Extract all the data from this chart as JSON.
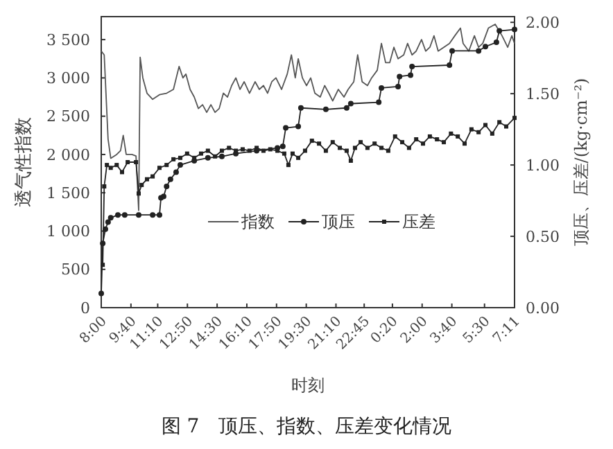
{
  "chart_data": {
    "type": "line",
    "title": "图 7　顶压、指数、压差变化情况",
    "xlabel": "时刻",
    "ylabel": "透气性指数",
    "y2label": "顶压、压差/(kg·cm⁻²)",
    "xlim": [
      "2000-01-01T08:00",
      "2000-01-02T07:11"
    ],
    "xticks": [
      {
        "value": "2000-01-01T08:00",
        "label": "8:00"
      },
      {
        "value": "2000-01-01T09:40",
        "label": "9:40"
      },
      {
        "value": "2000-01-01T11:10",
        "label": "11:10"
      },
      {
        "value": "2000-01-01T12:50",
        "label": "12:50"
      },
      {
        "value": "2000-01-01T14:30",
        "label": "14:30"
      },
      {
        "value": "2000-01-01T16:10",
        "label": "16:10"
      },
      {
        "value": "2000-01-01T17:50",
        "label": "17:50"
      },
      {
        "value": "2000-01-01T19:30",
        "label": "19:30"
      },
      {
        "value": "2000-01-01T21:10",
        "label": "21:10"
      },
      {
        "value": "2000-01-01T22:45",
        "label": "22:45"
      },
      {
        "value": "2000-01-02T00:20",
        "label": "0:20"
      },
      {
        "value": "2000-01-02T02:00",
        "label": "2:00"
      },
      {
        "value": "2000-01-02T03:40",
        "label": "3:40"
      },
      {
        "value": "2000-01-02T05:30",
        "label": "5:30"
      },
      {
        "value": "2000-01-02T07:11",
        "label": "7:11"
      }
    ],
    "ylim": [
      0,
      3800
    ],
    "yticks": [
      0,
      500,
      {
        "value": 1000,
        "label": "1 000"
      },
      {
        "value": 1500,
        "label": "1 500"
      },
      {
        "value": 2000,
        "label": "2 000"
      },
      {
        "value": 2500,
        "label": "2 500"
      },
      {
        "value": 3000,
        "label": "3 000"
      },
      {
        "value": 3500,
        "label": "3 500"
      }
    ],
    "y2lim": [
      0,
      2.04
    ],
    "y2ticks": [
      {
        "value": 0,
        "label": "0.00"
      },
      {
        "value": 0.5,
        "label": "0.50"
      },
      {
        "value": 1,
        "label": "1.00"
      },
      {
        "value": 1.5,
        "label": "1.50"
      },
      {
        "value": 2,
        "label": "2.00"
      }
    ],
    "legend": "center",
    "grid": false,
    "series": [
      {
        "name": "指数",
        "color": "#555555",
        "marker": "none",
        "x": [
          "2000-01-01T08:00",
          "2000-01-01T08:10",
          "2000-01-01T08:23",
          "2000-01-01T08:32",
          "2000-01-01T08:52",
          "2000-01-01T09:05",
          "2000-01-01T09:14",
          "2000-01-01T09:24",
          "2000-01-01T09:43",
          "2000-01-01T09:57",
          "2000-01-01T10:06",
          "2000-01-01T10:11",
          "2000-01-01T10:20",
          "2000-01-01T10:34",
          "2000-01-01T10:53",
          "2000-01-01T11:16",
          "2000-01-01T11:40",
          "2000-01-01T12:03",
          "2000-01-01T12:22",
          "2000-01-01T12:35",
          "2000-01-01T12:45",
          "2000-01-01T12:59",
          "2000-01-01T13:13",
          "2000-01-01T13:27",
          "2000-01-01T13:41",
          "2000-01-01T13:55",
          "2000-01-01T14:09",
          "2000-01-01T14:23",
          "2000-01-01T14:37",
          "2000-01-01T14:51",
          "2000-01-01T15:05",
          "2000-01-01T15:19",
          "2000-01-01T15:33",
          "2000-01-01T15:47",
          "2000-01-01T16:01",
          "2000-01-01T16:19",
          "2000-01-01T16:38",
          "2000-01-01T16:52",
          "2000-01-01T17:06",
          "2000-01-01T17:20",
          "2000-01-01T17:34",
          "2000-01-01T17:48",
          "2000-01-01T18:07",
          "2000-01-01T18:26",
          "2000-01-01T18:40",
          "2000-01-01T18:53",
          "2000-01-01T19:03",
          "2000-01-01T19:17",
          "2000-01-01T19:31",
          "2000-01-01T19:45",
          "2000-01-01T19:59",
          "2000-01-01T20:17",
          "2000-01-01T20:32",
          "2000-01-01T20:46",
          "2000-01-01T20:59",
          "2000-01-01T21:18",
          "2000-01-01T21:37",
          "2000-01-01T21:51",
          "2000-01-01T22:10",
          "2000-01-01T22:23",
          "2000-01-01T22:38",
          "2000-01-01T22:56",
          "2000-01-01T23:10",
          "2000-01-01T23:29",
          "2000-01-01T23:43",
          "2000-01-01T23:57",
          "2000-01-02T00:11",
          "2000-01-02T00:25",
          "2000-01-02T00:39",
          "2000-01-02T00:58",
          "2000-01-02T01:11",
          "2000-01-02T01:26",
          "2000-01-02T01:40",
          "2000-01-02T01:58",
          "2000-01-02T02:12",
          "2000-01-02T02:26",
          "2000-01-02T02:40",
          "2000-01-02T02:54",
          "2000-01-02T03:13",
          "2000-01-02T03:32",
          "2000-01-02T03:50",
          "2000-01-02T04:09",
          "2000-01-02T04:18",
          "2000-01-02T04:37",
          "2000-01-02T04:56",
          "2000-01-02T05:10",
          "2000-01-02T05:24",
          "2000-01-02T05:43",
          "2000-01-02T06:06",
          "2000-01-02T06:29",
          "2000-01-02T06:48",
          "2000-01-02T07:02",
          "2000-01-02T07:11"
        ],
        "values": [
          3350,
          3300,
          2200,
          1950,
          2000,
          2050,
          2250,
          2000,
          2000,
          1980,
          1270,
          3270,
          3000,
          2800,
          2720,
          2780,
          2800,
          2850,
          3150,
          3000,
          3050,
          2850,
          2750,
          2600,
          2650,
          2550,
          2650,
          2550,
          2600,
          2800,
          2750,
          2900,
          3000,
          2850,
          2950,
          2800,
          2950,
          2850,
          2900,
          2800,
          2950,
          3000,
          2850,
          3050,
          3300,
          3000,
          3250,
          3000,
          2900,
          3000,
          2800,
          2750,
          2900,
          2800,
          2700,
          2850,
          2750,
          2850,
          2950,
          3300,
          2950,
          2900,
          3000,
          3100,
          3450,
          3200,
          3200,
          3400,
          3250,
          3300,
          3450,
          3300,
          3350,
          3500,
          3350,
          3400,
          3550,
          3350,
          3400,
          3450,
          3550,
          3650,
          3450,
          3350,
          3550,
          3400,
          3450,
          3650,
          3700,
          3550,
          3400,
          3550,
          3450
        ]
      },
      {
        "name": "顶压",
        "color": "#222222",
        "marker": "circle",
        "axis": "y2",
        "x": [
          "2000-01-01T08:00",
          "2000-01-01T08:05",
          "2000-01-01T08:14",
          "2000-01-01T08:23",
          "2000-01-01T08:32",
          "2000-01-01T08:56",
          "2000-01-01T09:19",
          "2000-01-01T10:06",
          "2000-01-01T10:53",
          "2000-01-01T11:16",
          "2000-01-01T11:21",
          "2000-01-01T11:30",
          "2000-01-01T11:40",
          "2000-01-01T11:53",
          "2000-01-01T12:12",
          "2000-01-01T12:26",
          "2000-01-01T13:13",
          "2000-01-01T13:59",
          "2000-01-01T14:46",
          "2000-01-01T15:33",
          "2000-01-01T16:43",
          "2000-01-01T17:53",
          "2000-01-01T18:11",
          "2000-01-01T18:21",
          "2000-01-01T19:03",
          "2000-01-01T19:12",
          "2000-01-01T20:36",
          "2000-01-01T21:46",
          "2000-01-01T22:00",
          "2000-01-01T23:34",
          "2000-01-01T23:43",
          "2000-01-02T00:39",
          "2000-01-02T00:44",
          "2000-01-02T01:21",
          "2000-01-02T01:26",
          "2000-01-02T03:32",
          "2000-01-02T03:41",
          "2000-01-02T05:10",
          "2000-01-02T05:33",
          "2000-01-02T06:10",
          "2000-01-02T06:20",
          "2000-01-02T07:11"
        ],
        "values": [
          0.1,
          0.45,
          0.55,
          0.6,
          0.63,
          0.65,
          0.65,
          0.65,
          0.65,
          0.65,
          0.77,
          0.78,
          0.85,
          0.9,
          0.95,
          1.0,
          1.03,
          1.05,
          1.06,
          1.08,
          1.1,
          1.12,
          1.13,
          1.26,
          1.27,
          1.4,
          1.39,
          1.4,
          1.43,
          1.44,
          1.54,
          1.55,
          1.62,
          1.63,
          1.69,
          1.7,
          1.8,
          1.8,
          1.83,
          1.86,
          1.94,
          1.95
        ]
      },
      {
        "name": "压差",
        "color": "#222222",
        "marker": "square",
        "axis": "y2",
        "x": [
          "2000-01-01T08:05",
          "2000-01-01T08:10",
          "2000-01-01T08:19",
          "2000-01-01T08:32",
          "2000-01-01T08:52",
          "2000-01-01T09:10",
          "2000-01-01T09:29",
          "2000-01-01T09:57",
          "2000-01-01T10:06",
          "2000-01-01T10:16",
          "2000-01-01T10:34",
          "2000-01-01T10:53",
          "2000-01-01T11:16",
          "2000-01-01T11:40",
          "2000-01-01T12:03",
          "2000-01-01T12:26",
          "2000-01-01T12:49",
          "2000-01-01T13:13",
          "2000-01-01T13:36",
          "2000-01-01T13:59",
          "2000-01-01T14:23",
          "2000-01-01T14:46",
          "2000-01-01T15:10",
          "2000-01-01T15:33",
          "2000-01-01T15:56",
          "2000-01-01T16:19",
          "2000-01-01T16:43",
          "2000-01-01T17:06",
          "2000-01-01T17:29",
          "2000-01-01T17:53",
          "2000-01-01T18:16",
          "2000-01-01T18:30",
          "2000-01-01T18:44",
          "2000-01-01T19:03",
          "2000-01-01T19:26",
          "2000-01-01T19:49",
          "2000-01-01T20:13",
          "2000-01-01T20:36",
          "2000-01-01T20:59",
          "2000-01-01T21:23",
          "2000-01-01T21:46",
          "2000-01-01T22:00",
          "2000-01-01T22:14",
          "2000-01-01T22:33",
          "2000-01-01T22:56",
          "2000-01-01T23:20",
          "2000-01-01T23:43",
          "2000-01-02T00:06",
          "2000-01-02T00:29",
          "2000-01-02T00:53",
          "2000-01-02T01:16",
          "2000-01-02T01:40",
          "2000-01-02T02:03",
          "2000-01-02T02:26",
          "2000-01-02T02:50",
          "2000-01-02T03:13",
          "2000-01-02T03:37",
          "2000-01-02T04:00",
          "2000-01-02T04:23",
          "2000-01-02T04:46",
          "2000-01-02T05:10",
          "2000-01-02T05:33",
          "2000-01-02T05:56",
          "2000-01-02T06:20",
          "2000-01-02T06:43",
          "2000-01-02T07:11"
        ],
        "values": [
          0.3,
          0.85,
          1.0,
          0.98,
          1.0,
          0.95,
          1.02,
          1.02,
          0.8,
          0.86,
          0.9,
          0.92,
          0.98,
          1.0,
          1.04,
          1.05,
          1.08,
          1.05,
          1.08,
          1.1,
          1.06,
          1.1,
          1.12,
          1.1,
          1.11,
          1.1,
          1.12,
          1.1,
          1.11,
          1.1,
          1.08,
          1.0,
          1.08,
          1.05,
          1.1,
          1.17,
          1.15,
          1.1,
          1.16,
          1.12,
          1.1,
          1.03,
          1.12,
          1.16,
          1.12,
          1.15,
          1.12,
          1.1,
          1.2,
          1.16,
          1.12,
          1.18,
          1.15,
          1.2,
          1.18,
          1.16,
          1.22,
          1.2,
          1.15,
          1.25,
          1.23,
          1.28,
          1.22,
          1.3,
          1.27,
          1.33
        ]
      }
    ]
  }
}
